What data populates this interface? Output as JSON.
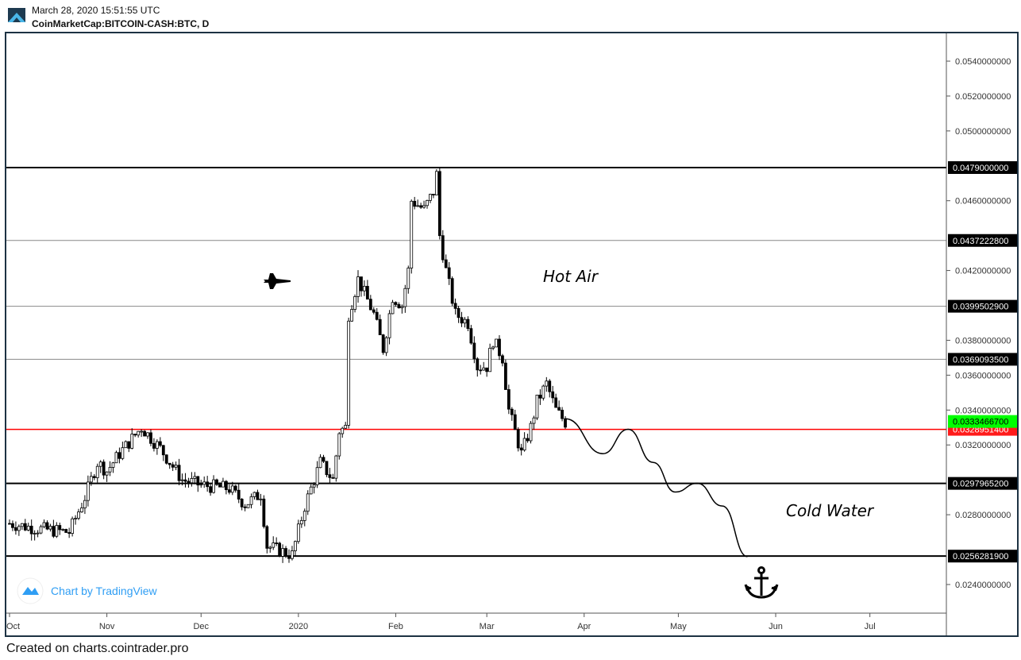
{
  "header": {
    "date": "March 28, 2020 15:51:55 UTC",
    "symbol": "CoinMarketCap:BITCOIN-CASH:BTC, D"
  },
  "footer": "Created on charts.cointrader.pro",
  "watermark": "Chart by TradingView",
  "chart_data": {
    "type": "candlestick",
    "title": "CoinMarketCap:BITCOIN-CASH:BTC, D",
    "ylim": [
      0.0232,
      0.0554
    ],
    "y_ticks": [
      "0.0540000000",
      "0.0520000000",
      "0.0500000000",
      "0.0460000000",
      "0.0420000000",
      "0.0380000000",
      "0.0360000000",
      "0.0340000000",
      "0.0320000000",
      "0.0280000000",
      "0.0240000000"
    ],
    "y_tick_values": [
      0.054,
      0.052,
      0.05,
      0.046,
      0.042,
      0.038,
      0.036,
      0.034,
      0.032,
      0.028,
      0.024
    ],
    "x_ticks": [
      {
        "label": "Oct",
        "day": 0
      },
      {
        "label": "Nov",
        "day": 31
      },
      {
        "label": "Dec",
        "day": 61
      },
      {
        "label": "2020",
        "day": 92
      },
      {
        "label": "Feb",
        "day": 123
      },
      {
        "label": "Mar",
        "day": 152
      },
      {
        "label": "Apr",
        "day": 183
      },
      {
        "label": "May",
        "day": 213
      },
      {
        "label": "Jun",
        "day": 244
      },
      {
        "label": "Jul",
        "day": 274
      }
    ],
    "x_range_days": [
      -1,
      299
    ],
    "price_path": [
      [
        0,
        0.0275
      ],
      [
        9,
        0.0272
      ],
      [
        19,
        0.027
      ],
      [
        24,
        0.029
      ],
      [
        28,
        0.031
      ],
      [
        31,
        0.0305
      ],
      [
        35,
        0.0315
      ],
      [
        42,
        0.033
      ],
      [
        48,
        0.0318
      ],
      [
        55,
        0.03
      ],
      [
        61,
        0.0297
      ],
      [
        70,
        0.0295
      ],
      [
        75,
        0.0286
      ],
      [
        80,
        0.0292
      ],
      [
        82,
        0.0262
      ],
      [
        90,
        0.0257
      ],
      [
        94,
        0.0285
      ],
      [
        99,
        0.031
      ],
      [
        103,
        0.03
      ],
      [
        105,
        0.0328
      ],
      [
        107,
        0.033
      ],
      [
        108,
        0.0395
      ],
      [
        111,
        0.0415
      ],
      [
        116,
        0.0395
      ],
      [
        119,
        0.0375
      ],
      [
        122,
        0.0405
      ],
      [
        125,
        0.04
      ],
      [
        127,
        0.042
      ],
      [
        128,
        0.046
      ],
      [
        132,
        0.0455
      ],
      [
        135,
        0.0465
      ],
      [
        136,
        0.0475
      ],
      [
        137,
        0.044
      ],
      [
        139,
        0.042
      ],
      [
        142,
        0.0395
      ],
      [
        146,
        0.039
      ],
      [
        149,
        0.0365
      ],
      [
        152,
        0.0365
      ],
      [
        154,
        0.038
      ],
      [
        157,
        0.037
      ],
      [
        159,
        0.034
      ],
      [
        163,
        0.0315
      ],
      [
        166,
        0.033
      ],
      [
        168,
        0.0345
      ],
      [
        171,
        0.0355
      ],
      [
        174,
        0.034
      ],
      [
        177,
        0.0333
      ]
    ],
    "levels": [
      {
        "value": 0.0479,
        "label": "0.0479000000",
        "color": "#000000",
        "style": "bold"
      },
      {
        "value": 0.04372228,
        "label": "0.0437222800",
        "color": "#888888",
        "style": "thin"
      },
      {
        "value": 0.03995029,
        "label": "0.0399502900",
        "color": "#888888",
        "style": "thin"
      },
      {
        "value": 0.03690935,
        "label": "0.0369093500",
        "color": "#888888",
        "style": "thin"
      },
      {
        "value": 0.03289514,
        "label": "0.0328951400",
        "color": "#ff0000",
        "style": "red"
      },
      {
        "value": 0.02979652,
        "label": "0.0297965200",
        "color": "#000000",
        "style": "bold"
      },
      {
        "value": 0.02562819,
        "label": "0.0256281900",
        "color": "#000000",
        "style": "bold"
      }
    ],
    "last_price": {
      "value": 0.03334667,
      "label": "0.0333466700",
      "color": "#00ff00"
    },
    "projection": [
      [
        177,
        0.0335
      ],
      [
        189,
        0.0315
      ],
      [
        197,
        0.0329
      ],
      [
        205,
        0.031
      ],
      [
        212,
        0.0293
      ],
      [
        219,
        0.0298
      ],
      [
        227,
        0.0285
      ],
      [
        235,
        0.0256
      ]
    ],
    "annotations": {
      "hot_air": "Hot Air",
      "cold_water": "Cold Water"
    },
    "icons": [
      "jet-icon",
      "anchor-icon"
    ]
  }
}
